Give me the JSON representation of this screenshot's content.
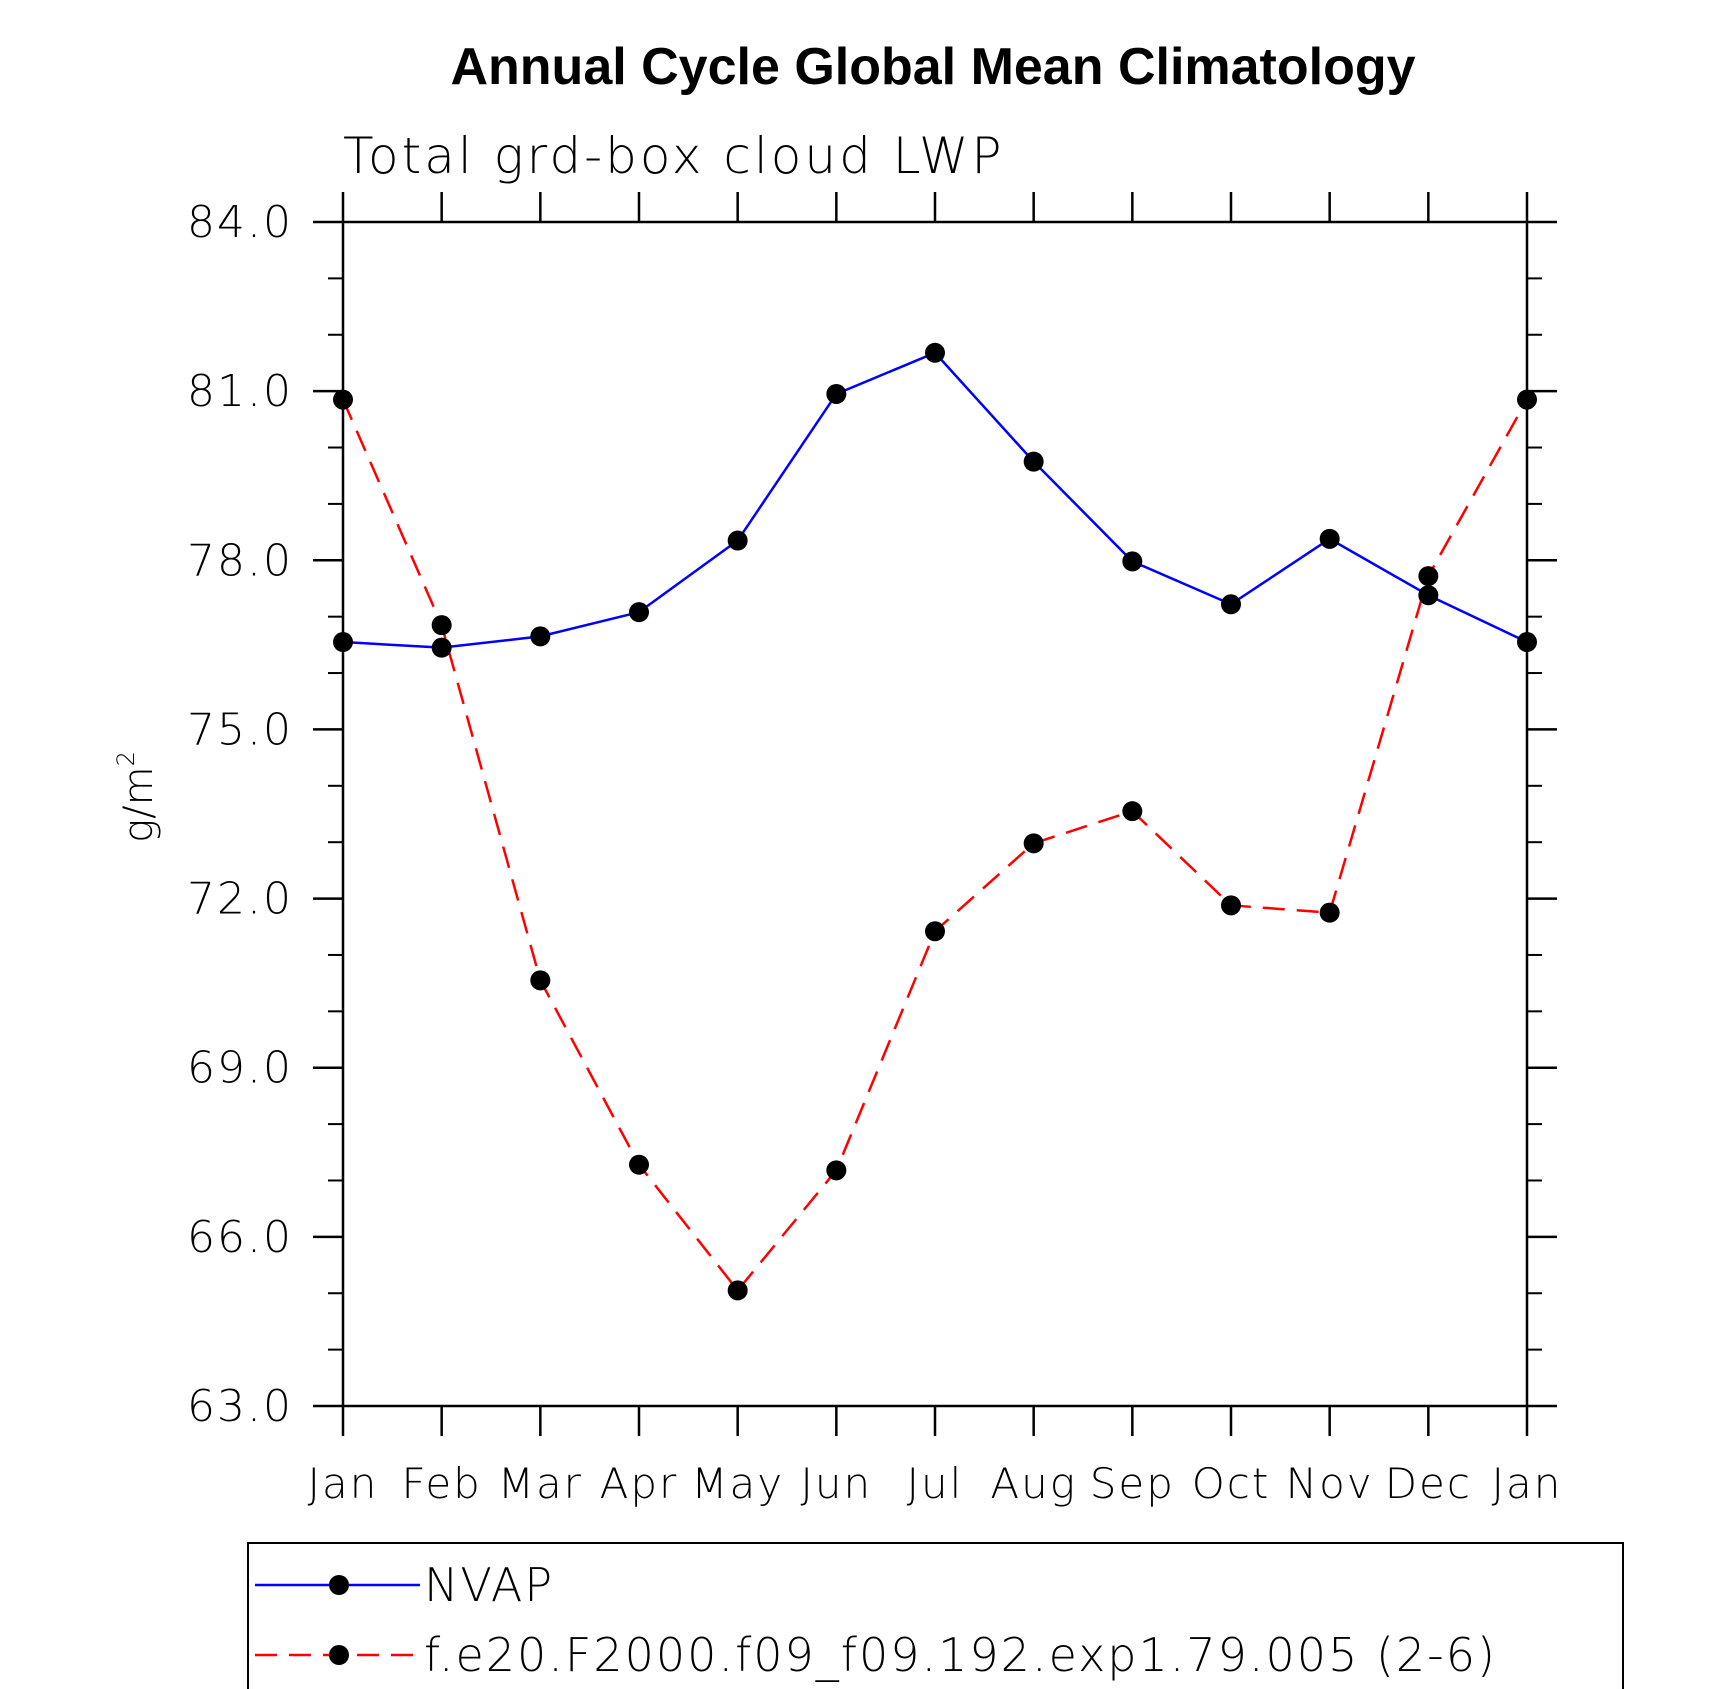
{
  "chart_data": {
    "type": "line",
    "title": "Annual Cycle Global Mean Climatology",
    "subtitle": "Total grd-box cloud LWP",
    "ylabel": "g/m²",
    "ylabel_base": "g/m",
    "ylabel_sup": "2",
    "xlabel": "",
    "categories": [
      "Jan",
      "Feb",
      "Mar",
      "Apr",
      "May",
      "Jun",
      "Jul",
      "Aug",
      "Sep",
      "Oct",
      "Nov",
      "Dec",
      "Jan"
    ],
    "ylim": [
      63.0,
      84.0
    ],
    "yticks": [
      "63.0",
      "66.0",
      "69.0",
      "72.0",
      "75.0",
      "78.0",
      "81.0",
      "84.0"
    ],
    "yminor_step": 1.0,
    "grid": false,
    "legend_position": "bottom",
    "series": [
      {
        "name": "NVAP",
        "color": "#0000ff",
        "dash": "solid",
        "marker": "circle",
        "values": [
          76.55,
          76.45,
          76.65,
          77.08,
          78.35,
          80.95,
          81.68,
          79.75,
          77.98,
          77.22,
          78.38,
          77.38,
          76.55
        ]
      },
      {
        "name": "f.e20.F2000.f09_f09.192.exp1.79.005 (2-6)",
        "color": "#ff0000",
        "dash": "dashed",
        "marker": "circle",
        "values": [
          80.85,
          76.85,
          70.55,
          67.28,
          65.05,
          67.18,
          71.42,
          72.98,
          73.55,
          71.88,
          71.75,
          77.72,
          80.85
        ]
      }
    ]
  }
}
